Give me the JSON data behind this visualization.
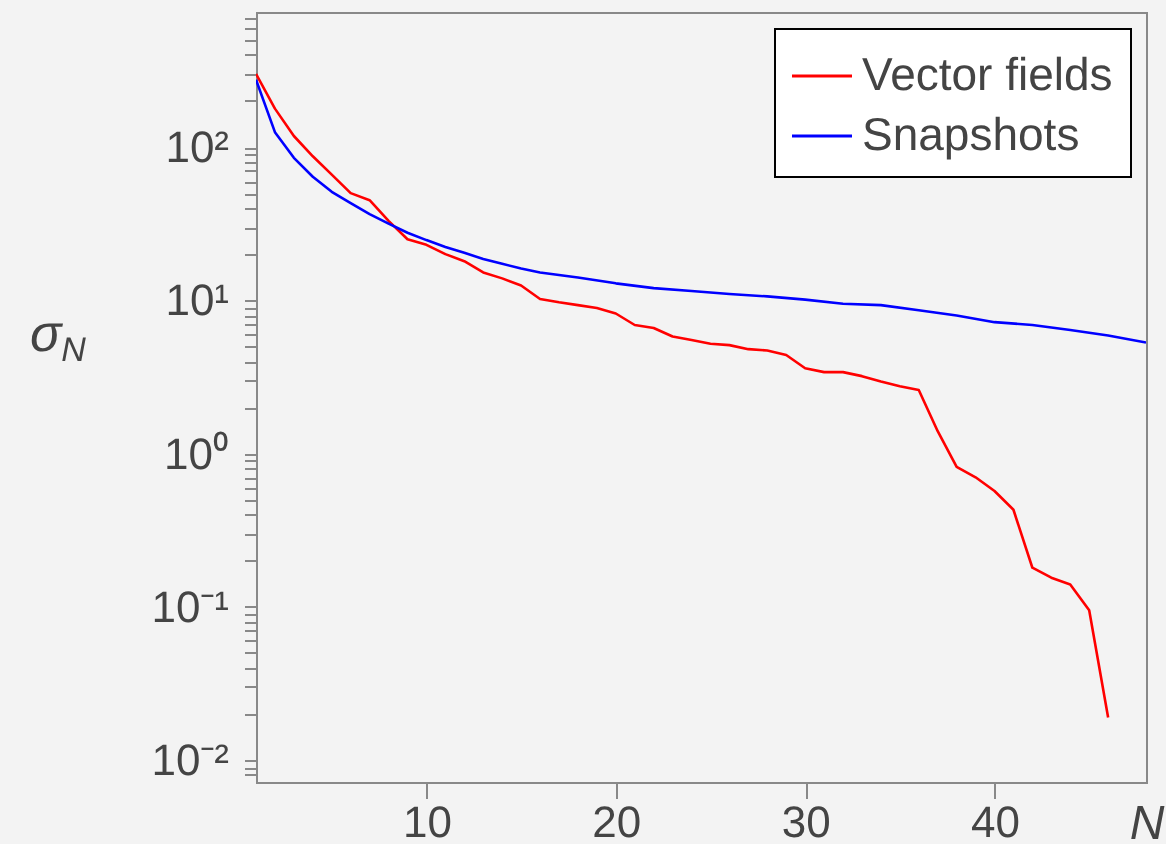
{
  "chart_data": {
    "type": "line",
    "xlabel": "N",
    "ylabel": "σ$_{N}$",
    "xlim": [
      1,
      48
    ],
    "xticks": [
      10,
      20,
      30,
      40
    ],
    "ylim": [
      0.0072,
      760
    ],
    "log": "y",
    "yticks": [
      {
        "value": 0.01,
        "label": "10⁻²"
      },
      {
        "value": 0.1,
        "label": "10⁻¹"
      },
      {
        "value": 1,
        "label": "10⁰"
      },
      {
        "value": 10,
        "label": "10¹"
      },
      {
        "value": 100,
        "label": "10²"
      },
      {
        "value": 0.008,
        "label": null
      },
      {
        "value": 0.009,
        "label": null
      },
      {
        "value": 0.02,
        "label": null
      },
      {
        "value": 0.03,
        "label": null
      },
      {
        "value": 0.04,
        "label": null
      },
      {
        "value": 0.05,
        "label": null
      },
      {
        "value": 0.06,
        "label": null
      },
      {
        "value": 0.07,
        "label": null
      },
      {
        "value": 0.08,
        "label": null
      },
      {
        "value": 0.09,
        "label": null
      },
      {
        "value": 0.2,
        "label": null
      },
      {
        "value": 0.3,
        "label": null
      },
      {
        "value": 0.4,
        "label": null
      },
      {
        "value": 0.5,
        "label": null
      },
      {
        "value": 0.6,
        "label": null
      },
      {
        "value": 0.7,
        "label": null
      },
      {
        "value": 0.8,
        "label": null
      },
      {
        "value": 0.9,
        "label": null
      },
      {
        "value": 2,
        "label": null
      },
      {
        "value": 3,
        "label": null
      },
      {
        "value": 4,
        "label": null
      },
      {
        "value": 5,
        "label": null
      },
      {
        "value": 6,
        "label": null
      },
      {
        "value": 7,
        "label": null
      },
      {
        "value": 8,
        "label": null
      },
      {
        "value": 9,
        "label": null
      },
      {
        "value": 20,
        "label": null
      },
      {
        "value": 30,
        "label": null
      },
      {
        "value": 40,
        "label": null
      },
      {
        "value": 50,
        "label": null
      },
      {
        "value": 60,
        "label": null
      },
      {
        "value": 70,
        "label": null
      },
      {
        "value": 80,
        "label": null
      },
      {
        "value": 90,
        "label": null
      },
      {
        "value": 200,
        "label": null
      },
      {
        "value": 300,
        "label": null
      },
      {
        "value": 400,
        "label": null
      },
      {
        "value": 500,
        "label": null
      },
      {
        "value": 600,
        "label": null
      },
      {
        "value": 700,
        "label": null
      }
    ],
    "grid": false,
    "legend": "top right",
    "marker": "none",
    "line_style": "solid",
    "series": [
      {
        "name": "Vector fields",
        "color": "#ff0000",
        "x": [
          1,
          2,
          3,
          4,
          5,
          6,
          7,
          8,
          9,
          10,
          11,
          12,
          13,
          14,
          15,
          16,
          17,
          18,
          19,
          20,
          21,
          22,
          23,
          24,
          25,
          26,
          27,
          28,
          29,
          30,
          31,
          32,
          33,
          34,
          35,
          36,
          37,
          38,
          39,
          40,
          41,
          42,
          43,
          44,
          45,
          46
        ],
        "values": [
          300,
          178,
          118,
          87,
          66,
          50,
          45,
          33,
          25,
          23,
          20,
          18,
          15.2,
          13.9,
          12.5,
          10.2,
          9.7,
          9.3,
          8.9,
          8.2,
          6.9,
          6.6,
          5.8,
          5.5,
          5.2,
          5.1,
          4.8,
          4.7,
          4.4,
          3.6,
          3.4,
          3.4,
          3.2,
          2.95,
          2.75,
          2.6,
          1.4,
          0.82,
          0.7,
          0.57,
          0.43,
          0.18,
          0.155,
          0.14,
          0.095,
          0.019
        ]
      },
      {
        "name": "Snapshots",
        "color": "#0000ff",
        "x": [
          1,
          2,
          3,
          4,
          5,
          6,
          7,
          8,
          9,
          10,
          11,
          12,
          13,
          14,
          15,
          16,
          18,
          20,
          22,
          24,
          26,
          28,
          30,
          32,
          34,
          36,
          38,
          40,
          42,
          44,
          46,
          48
        ],
        "values": [
          275,
          125,
          85,
          64,
          51,
          43,
          36.5,
          31.6,
          27.6,
          24.7,
          22.3,
          20.4,
          18.6,
          17.3,
          16.1,
          15.2,
          14.1,
          12.9,
          12.0,
          11.5,
          11.0,
          10.6,
          10.1,
          9.5,
          9.3,
          8.6,
          7.95,
          7.2,
          6.9,
          6.4,
          5.9,
          5.3
        ]
      }
    ]
  }
}
